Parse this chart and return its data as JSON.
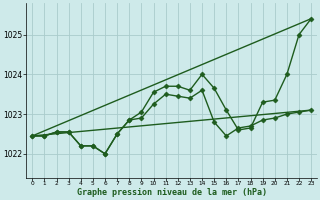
{
  "title": "Graphe pression niveau de la mer (hPa)",
  "background_color": "#ceeaea",
  "grid_color": "#aacccc",
  "line_color": "#1e5c1e",
  "xlim": [
    -0.5,
    23.5
  ],
  "ylim": [
    1021.4,
    1025.8
  ],
  "yticks": [
    1022,
    1023,
    1024,
    1025
  ],
  "xtick_labels": [
    "0",
    "1",
    "2",
    "3",
    "4",
    "5",
    "6",
    "7",
    "8",
    "9",
    "10",
    "11",
    "12",
    "13",
    "14",
    "15",
    "16",
    "17",
    "18",
    "19",
    "20",
    "21",
    "22",
    "23"
  ],
  "series": [
    {
      "x": [
        0,
        1,
        2,
        3,
        4,
        5,
        6,
        7,
        8,
        9,
        10,
        11,
        12,
        13,
        14,
        15,
        16,
        17,
        18,
        19,
        20,
        21,
        22,
        23
      ],
      "y": [
        1022.45,
        1022.45,
        1022.55,
        1022.55,
        1022.2,
        1022.2,
        1022.0,
        1022.5,
        1022.85,
        1023.05,
        1023.55,
        1023.7,
        1023.7,
        1023.6,
        1024.0,
        1023.65,
        1023.1,
        1022.6,
        1022.65,
        1023.3,
        1023.35,
        1024.0,
        1025.0,
        1025.4
      ],
      "marker": "D",
      "markersize": 2.5,
      "linewidth": 1.0
    },
    {
      "x": [
        0,
        1,
        2,
        3,
        4,
        5,
        6,
        7,
        8,
        9,
        10,
        11,
        12,
        13,
        14,
        15,
        16,
        17,
        18,
        19,
        20,
        21,
        22,
        23
      ],
      "y": [
        1022.45,
        1022.45,
        1022.55,
        1022.55,
        1022.2,
        1022.2,
        1022.0,
        1022.5,
        1022.85,
        1022.9,
        1023.25,
        1023.5,
        1023.45,
        1023.4,
        1023.6,
        1022.8,
        1022.45,
        1022.65,
        1022.7,
        1022.85,
        1022.9,
        1023.0,
        1023.05,
        1023.1
      ],
      "marker": "D",
      "markersize": 2.5,
      "linewidth": 1.0
    },
    {
      "x": [
        0,
        23
      ],
      "y": [
        1022.45,
        1025.4
      ],
      "marker": "None",
      "markersize": 0,
      "linewidth": 1.0
    },
    {
      "x": [
        0,
        23
      ],
      "y": [
        1022.45,
        1023.1
      ],
      "marker": "None",
      "markersize": 0,
      "linewidth": 1.0
    }
  ]
}
